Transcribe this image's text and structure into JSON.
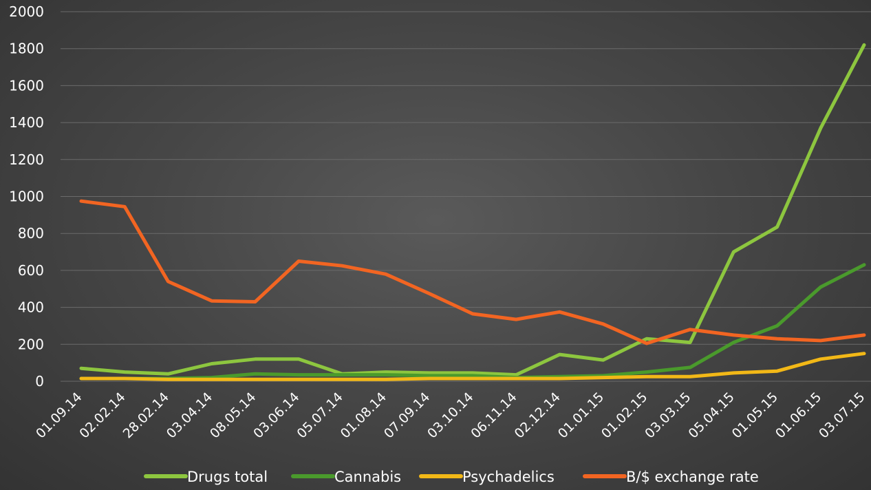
{
  "chart_data": {
    "type": "line",
    "categories": [
      "01.09.14",
      "02.02.14",
      "28.02.14",
      "03.04.14",
      "08.05.14",
      "03.06.14",
      "05.07.14",
      "01.08.14",
      "07.09.14",
      "03.10.14",
      "06.11.14",
      "02.12.14",
      "01.01.15",
      "01.02.15",
      "03.03.15",
      "05.04.15",
      "01.05.15",
      "01.06.15",
      "03.07.15"
    ],
    "ylim": [
      0,
      2000
    ],
    "yticks": [
      0,
      200,
      400,
      600,
      800,
      1000,
      1200,
      1400,
      1600,
      1800,
      2000
    ],
    "grid": true,
    "legend_position": "bottom",
    "series": [
      {
        "name": "Drugs total",
        "color": "#8dc63f",
        "values": [
          70,
          50,
          40,
          95,
          120,
          120,
          40,
          50,
          45,
          45,
          35,
          145,
          115,
          230,
          210,
          700,
          835,
          1370,
          1820
        ]
      },
      {
        "name": "Cannabis",
        "color": "#4a9a2c",
        "values": [
          15,
          15,
          15,
          20,
          40,
          35,
          35,
          35,
          30,
          30,
          20,
          25,
          30,
          50,
          75,
          210,
          300,
          510,
          630
        ]
      },
      {
        "name": "Psychadelics",
        "color": "#f2b817",
        "values": [
          15,
          15,
          10,
          10,
          10,
          10,
          10,
          10,
          15,
          15,
          15,
          15,
          20,
          25,
          25,
          45,
          55,
          120,
          150
        ]
      },
      {
        "name": "B/$ exchange rate",
        "color": "#f26522",
        "values": [
          975,
          945,
          540,
          435,
          430,
          650,
          625,
          580,
          475,
          365,
          335,
          375,
          310,
          205,
          280,
          250,
          230,
          220,
          250
        ]
      }
    ]
  }
}
